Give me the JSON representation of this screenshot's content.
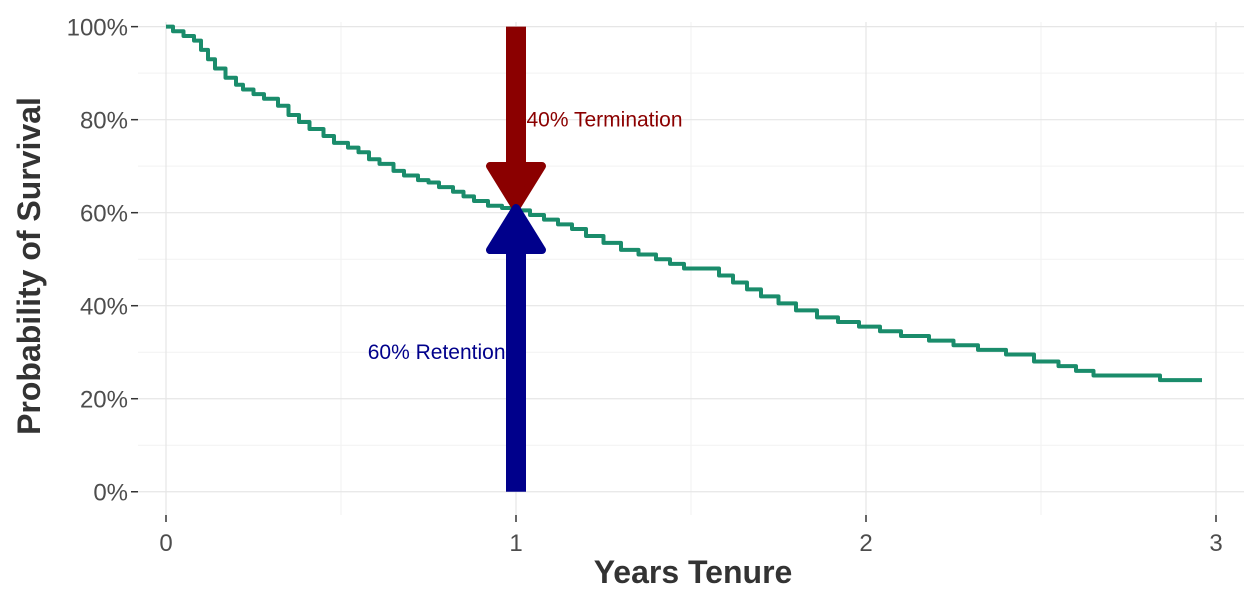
{
  "chart_data": {
    "type": "line",
    "title": "",
    "xlabel": "Years Tenure",
    "ylabel": "Probability of Survival",
    "xlim": [
      -0.08,
      3.08
    ],
    "ylim": [
      -0.05,
      1.01
    ],
    "x_ticks": [
      0,
      1,
      2,
      3
    ],
    "x_tick_labels": [
      "0",
      "1",
      "2",
      "3"
    ],
    "y_ticks": [
      0,
      0.2,
      0.4,
      0.6,
      0.8,
      1.0
    ],
    "y_tick_labels": [
      "0%",
      "20%",
      "40%",
      "60%",
      "80%",
      "100%"
    ],
    "grid": true,
    "legend": "none",
    "series": [
      {
        "name": "",
        "step": true,
        "color": "#1a8c6b",
        "x": [
          0.0,
          0.02,
          0.05,
          0.08,
          0.1,
          0.12,
          0.14,
          0.17,
          0.2,
          0.22,
          0.25,
          0.28,
          0.32,
          0.35,
          0.38,
          0.41,
          0.45,
          0.48,
          0.52,
          0.55,
          0.58,
          0.61,
          0.65,
          0.68,
          0.72,
          0.75,
          0.78,
          0.82,
          0.85,
          0.88,
          0.92,
          0.96,
          1.0,
          1.04,
          1.08,
          1.12,
          1.16,
          1.2,
          1.25,
          1.3,
          1.35,
          1.4,
          1.44,
          1.48,
          1.52,
          1.58,
          1.62,
          1.66,
          1.7,
          1.75,
          1.8,
          1.86,
          1.92,
          1.98,
          2.04,
          2.1,
          2.18,
          2.25,
          2.32,
          2.4,
          2.48,
          2.55,
          2.6,
          2.65,
          2.78,
          2.84,
          2.96
        ],
        "y": [
          1.0,
          0.99,
          0.98,
          0.97,
          0.95,
          0.93,
          0.91,
          0.89,
          0.875,
          0.865,
          0.855,
          0.845,
          0.83,
          0.81,
          0.795,
          0.78,
          0.765,
          0.75,
          0.74,
          0.73,
          0.715,
          0.705,
          0.69,
          0.68,
          0.67,
          0.665,
          0.655,
          0.645,
          0.635,
          0.625,
          0.615,
          0.61,
          0.605,
          0.595,
          0.585,
          0.575,
          0.565,
          0.55,
          0.535,
          0.52,
          0.51,
          0.5,
          0.49,
          0.48,
          0.48,
          0.465,
          0.45,
          0.435,
          0.42,
          0.405,
          0.39,
          0.375,
          0.365,
          0.355,
          0.345,
          0.335,
          0.325,
          0.315,
          0.305,
          0.295,
          0.28,
          0.27,
          0.26,
          0.25,
          0.25,
          0.24,
          0.24
        ]
      }
    ],
    "annotations": [
      {
        "text": "40% Termination",
        "color": "#8b0000",
        "arrow_from": 1.0,
        "arrow_to": 0.61,
        "x": 1,
        "text_x": 1.03,
        "text_y": 0.8
      },
      {
        "text": "60% Retention",
        "color": "#00008b",
        "arrow_from": 0.0,
        "arrow_to": 0.61,
        "x": 1,
        "text_x": 0.97,
        "text_y": 0.3
      }
    ]
  }
}
